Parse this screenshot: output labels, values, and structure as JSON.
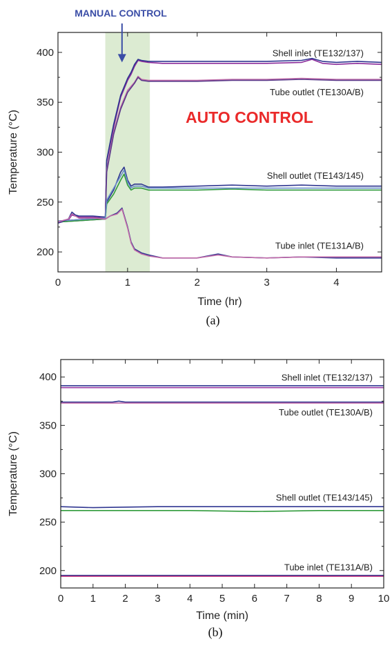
{
  "chart_data": [
    {
      "type": "line",
      "caption": "(a)",
      "xlabel": "Time (hr)",
      "ylabel": "Temperature (°C)",
      "xlim": [
        0,
        4.65
      ],
      "ylim": [
        180,
        420
      ],
      "xticks": [
        0,
        1,
        2,
        3,
        4
      ],
      "yticks": [
        200,
        250,
        300,
        350,
        400
      ],
      "shaded_region": {
        "x_start": 0.68,
        "x_end": 1.32,
        "color": "#dcebd2"
      },
      "annotations": {
        "manual": {
          "text": "MANUAL  CONTROL",
          "color": "#3a4da6",
          "arrow_x": 0.92,
          "arrow_y": 390
        },
        "auto": {
          "text": "AUTO CONTROL",
          "color": "#ea2a2a",
          "x": 2.75,
          "y": 335
        }
      },
      "series": [
        {
          "name": "Shell inlet (TE132/137)",
          "color": "#8a2a9a",
          "x": [
            0,
            0.15,
            0.2,
            0.3,
            0.5,
            0.68,
            0.7,
            0.8,
            0.9,
            1.0,
            1.05,
            1.1,
            1.15,
            1.2,
            1.3,
            1.5,
            2.0,
            2.5,
            3.0,
            3.5,
            3.65,
            3.8,
            4.0,
            4.3,
            4.65
          ],
          "values": [
            229,
            232,
            237,
            235,
            235,
            234,
            290,
            325,
            355,
            372,
            378,
            386,
            392,
            391,
            390,
            389,
            389,
            389,
            389,
            390,
            393,
            389,
            388,
            389,
            388
          ]
        },
        {
          "name": "",
          "color": "#2e3590",
          "x": [
            0,
            0.15,
            0.2,
            0.3,
            0.5,
            0.68,
            0.7,
            0.8,
            0.9,
            1.0,
            1.05,
            1.1,
            1.15,
            1.2,
            1.3,
            1.5,
            2.0,
            2.5,
            3.0,
            3.5,
            3.65,
            3.8,
            4.0,
            4.3,
            4.65
          ],
          "values": [
            230,
            233,
            238,
            236,
            236,
            235,
            292,
            328,
            357,
            374,
            380,
            388,
            393,
            392,
            391,
            391,
            391,
            391,
            391,
            392,
            394,
            391,
            390,
            391,
            390
          ]
        },
        {
          "name": "Tube outlet (TE130A/B)",
          "color": "#c06aa8",
          "x": [
            0,
            0.68,
            0.7,
            0.8,
            0.9,
            1.0,
            1.1,
            1.15,
            1.2,
            1.3,
            1.6,
            2.0,
            2.5,
            3.0,
            3.5,
            4.0,
            4.65
          ],
          "values": [
            231,
            234,
            282,
            320,
            345,
            362,
            370,
            376,
            373,
            372,
            372,
            372,
            373,
            373,
            374,
            373,
            373
          ]
        },
        {
          "name": "",
          "color": "#5a3a8a",
          "x": [
            0,
            0.68,
            0.7,
            0.8,
            0.9,
            1.0,
            1.1,
            1.15,
            1.2,
            1.3,
            1.6,
            2.0,
            2.5,
            3.0,
            3.5,
            4.0,
            4.65
          ],
          "values": [
            230,
            233,
            280,
            318,
            343,
            360,
            369,
            375,
            372,
            371,
            371,
            371,
            372,
            372,
            373,
            372,
            372
          ]
        },
        {
          "name": "Shell outlet (TE143/145)",
          "color": "#2e3590",
          "x": [
            0,
            0.68,
            0.7,
            0.8,
            0.9,
            0.95,
            1.0,
            1.05,
            1.1,
            1.2,
            1.3,
            1.5,
            2.0,
            2.5,
            3.0,
            3.5,
            4.0,
            4.65
          ],
          "values": [
            231,
            234,
            250,
            262,
            280,
            285,
            272,
            266,
            268,
            268,
            265,
            265,
            266,
            267,
            266,
            267,
            266,
            266
          ]
        },
        {
          "name": "",
          "color": "#2f9a3a",
          "x": [
            0,
            0.68,
            0.7,
            0.8,
            0.9,
            0.95,
            1.0,
            1.05,
            1.1,
            1.2,
            1.3,
            1.5,
            2.0,
            2.5,
            3.0,
            3.5,
            4.0,
            4.65
          ],
          "values": [
            230,
            233,
            248,
            258,
            272,
            278,
            267,
            262,
            264,
            264,
            262,
            262,
            262,
            263,
            262,
            262,
            262,
            262
          ]
        },
        {
          "name": "",
          "color": "#6a8fc9",
          "x": [
            0,
            0.68,
            0.7,
            0.8,
            0.9,
            0.95,
            1.0,
            1.05,
            1.1,
            1.2,
            1.3,
            1.5,
            2.0,
            2.5,
            3.0,
            3.5,
            4.0,
            4.65
          ],
          "values": [
            231,
            234,
            252,
            264,
            276,
            282,
            270,
            264,
            266,
            266,
            264,
            264,
            264,
            264,
            264,
            264,
            264,
            264
          ]
        },
        {
          "name": "Tube inlet (TE131A/B)",
          "color": "#2e3590",
          "x": [
            0,
            0.15,
            0.2,
            0.3,
            0.5,
            0.68,
            0.75,
            0.85,
            0.92,
            1.0,
            1.05,
            1.1,
            1.2,
            1.3,
            1.5,
            2.0,
            2.3,
            2.5,
            3.0,
            3.5,
            4.0,
            4.65
          ],
          "values": [
            229,
            233,
            240,
            234,
            234,
            233,
            236,
            239,
            244,
            225,
            210,
            203,
            199,
            197,
            194,
            194,
            198,
            195,
            194,
            195,
            194,
            194
          ]
        },
        {
          "name": "",
          "color": "#c06aa8",
          "x": [
            0,
            0.15,
            0.2,
            0.3,
            0.5,
            0.68,
            0.75,
            0.85,
            0.92,
            1.0,
            1.05,
            1.1,
            1.2,
            1.3,
            1.5,
            2.0,
            2.3,
            2.5,
            3.0,
            3.5,
            4.0,
            4.65
          ],
          "values": [
            230,
            233,
            238,
            234,
            234,
            233,
            236,
            238,
            243,
            224,
            209,
            202,
            198,
            196,
            194,
            194,
            197,
            195,
            194,
            195,
            195,
            195
          ]
        }
      ],
      "trace_labels": [
        {
          "text": "Shell inlet (TE132/137)",
          "x": 4.4,
          "y": 399
        },
        {
          "text": "Tube outlet (TE130A/B)",
          "x": 4.42,
          "y": 360
        },
        {
          "text": "Shell outlet (TE143/145)",
          "x": 4.4,
          "y": 276
        },
        {
          "text": "Tube inlet (TE131A/B)",
          "x": 4.4,
          "y": 206
        }
      ]
    },
    {
      "type": "line",
      "caption": "(b)",
      "xlabel": "Time (min)",
      "ylabel": "Temperature (°C)",
      "xlim": [
        0,
        10
      ],
      "ylim": [
        182,
        418
      ],
      "xticks": [
        0,
        1,
        2,
        3,
        4,
        5,
        6,
        7,
        8,
        9,
        10
      ],
      "yticks": [
        200,
        250,
        300,
        350,
        400
      ],
      "series": [
        {
          "name": "Shell inlet (TE132/137)",
          "color": "#2e3590",
          "x": [
            0,
            2,
            4,
            6,
            8,
            10
          ],
          "values": [
            391,
            391,
            391,
            391,
            391,
            391
          ]
        },
        {
          "name": "",
          "color": "#9a3aa5",
          "x": [
            0,
            2,
            4,
            6,
            8,
            10
          ],
          "values": [
            389,
            389,
            389,
            389,
            389,
            389
          ]
        },
        {
          "name": "Tube outlet (TE130A/B)",
          "color": "#2e3590",
          "x": [
            0,
            1.6,
            1.8,
            2.0,
            4,
            6,
            8,
            10
          ],
          "values": [
            374,
            374,
            375,
            374,
            374,
            374,
            374,
            374
          ]
        },
        {
          "name": "",
          "color": "#c06aa8",
          "x": [
            0,
            2,
            4,
            6,
            8,
            10
          ],
          "values": [
            373,
            373,
            373,
            373,
            373,
            373
          ]
        },
        {
          "name": "Shell outlet (TE143/145)",
          "color": "#2e3590",
          "x": [
            0,
            1,
            3,
            5,
            7,
            9,
            10
          ],
          "values": [
            266,
            265,
            266,
            266,
            266,
            266,
            266
          ]
        },
        {
          "name": "",
          "color": "#2f9a3a",
          "x": [
            0,
            2,
            4,
            6,
            8,
            10
          ],
          "values": [
            262,
            262,
            262,
            261,
            262,
            262
          ]
        },
        {
          "name": "Tube inlet (TE131A/B)",
          "color": "#2e3590",
          "x": [
            0,
            2,
            4,
            6,
            8,
            10
          ],
          "values": [
            195,
            195,
            195,
            195,
            195,
            195
          ]
        },
        {
          "name": "",
          "color": "#d04a8a",
          "x": [
            0,
            2,
            4,
            6,
            8,
            10
          ],
          "values": [
            194,
            194,
            194,
            194,
            194,
            194
          ]
        }
      ],
      "trace_labels": [
        {
          "text": "Shell inlet (TE132/137)",
          "x": 9.45,
          "y": 399
        },
        {
          "text": "Tube outlet (TE130A/B)",
          "x": 9.55,
          "y": 363
        },
        {
          "text": "Shell outlet (TE143/145)",
          "x": 9.45,
          "y": 275
        },
        {
          "text": "Tube inlet (TE131A/B)",
          "x": 9.45,
          "y": 203
        }
      ]
    }
  ]
}
